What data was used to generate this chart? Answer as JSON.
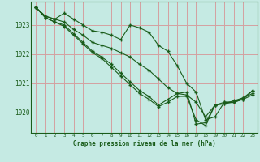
{
  "title": "Graphe pression niveau de la mer (hPa)",
  "bg_color": "#c5eae3",
  "grid_color": "#d4a0a0",
  "line_color": "#1a5c1a",
  "xlim": [
    -0.5,
    23.5
  ],
  "ylim": [
    1019.3,
    1023.8
  ],
  "yticks": [
    1020,
    1021,
    1022,
    1023
  ],
  "xticks": [
    0,
    1,
    2,
    3,
    4,
    5,
    6,
    7,
    8,
    9,
    10,
    11,
    12,
    13,
    14,
    15,
    16,
    17,
    18,
    19,
    20,
    21,
    22,
    23
  ],
  "series": [
    {
      "x": [
        0,
        1,
        2,
        3,
        4,
        5,
        6,
        7,
        8,
        9,
        10,
        11,
        12,
        13,
        14,
        15,
        16,
        17,
        18,
        19,
        20,
        21,
        22,
        23
      ],
      "y": [
        1023.6,
        1023.3,
        1023.2,
        1023.4,
        1023.2,
        1023.0,
        1022.8,
        1022.75,
        1022.65,
        1022.5,
        1023.0,
        1022.9,
        1022.75,
        1022.3,
        1022.1,
        1021.6,
        1021.0,
        1020.7,
        1019.75,
        1019.85,
        1020.35,
        1020.35,
        1020.45,
        1020.75
      ]
    },
    {
      "x": [
        0,
        1,
        2,
        3,
        4,
        5,
        6,
        7,
        8,
        9,
        10,
        11,
        12,
        13,
        14,
        15,
        16,
        17,
        18,
        19,
        20,
        21,
        22,
        23
      ],
      "y": [
        1023.6,
        1023.3,
        1023.2,
        1023.1,
        1022.85,
        1022.65,
        1022.4,
        1022.3,
        1022.2,
        1022.05,
        1021.9,
        1021.65,
        1021.45,
        1021.15,
        1020.85,
        1020.65,
        1020.6,
        1020.35,
        1019.85,
        1020.25,
        1020.35,
        1020.35,
        1020.5,
        1020.75
      ]
    },
    {
      "x": [
        0,
        1,
        2,
        3,
        4,
        5,
        6,
        7,
        8,
        9,
        10,
        11,
        12,
        13,
        14,
        15,
        16,
        17,
        18,
        19,
        20,
        21,
        22,
        23
      ],
      "y": [
        1023.6,
        1023.25,
        1023.1,
        1023.0,
        1022.7,
        1022.4,
        1022.1,
        1021.9,
        1021.65,
        1021.35,
        1021.05,
        1020.75,
        1020.55,
        1020.25,
        1020.45,
        1020.65,
        1020.7,
        1019.6,
        1019.65,
        1020.25,
        1020.3,
        1020.4,
        1020.5,
        1020.65
      ]
    },
    {
      "x": [
        0,
        1,
        2,
        3,
        4,
        5,
        6,
        7,
        8,
        9,
        10,
        11,
        12,
        13,
        14,
        15,
        16,
        17,
        18,
        19,
        20,
        21,
        22,
        23
      ],
      "y": [
        1023.6,
        1023.25,
        1023.1,
        1022.95,
        1022.65,
        1022.35,
        1022.05,
        1021.85,
        1021.55,
        1021.25,
        1020.95,
        1020.65,
        1020.45,
        1020.2,
        1020.35,
        1020.55,
        1020.55,
        1019.75,
        1019.55,
        1020.25,
        1020.3,
        1020.35,
        1020.45,
        1020.6
      ]
    }
  ]
}
